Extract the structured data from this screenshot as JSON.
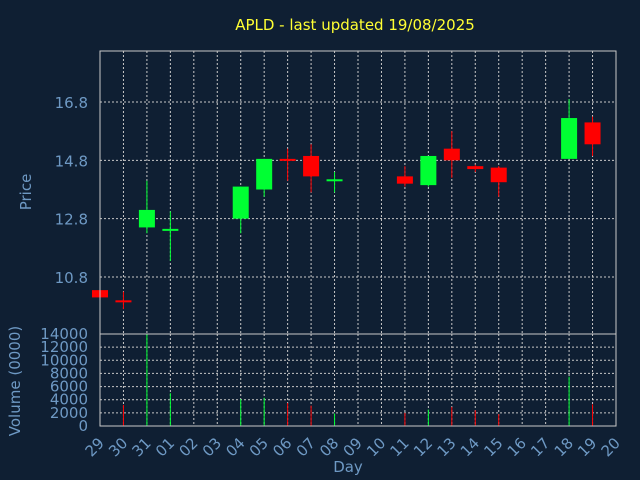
{
  "colors": {
    "background": "#0f1f33",
    "axis_text": "#6e99c4",
    "title": "#ffff33",
    "grid": "#c8c8c8",
    "up": "#00ff33",
    "down": "#ff0000",
    "frame": "#c8c8c8"
  },
  "chart_data": {
    "type": "candlestick",
    "title": "APLD - last updated 19/08/2025",
    "xlabel": "Day",
    "ylabel_price": "Price",
    "ylabel_volume": "Volume (0000)",
    "price_ticks": [
      10.8,
      12.8,
      14.8,
      16.8
    ],
    "price_tick_labels": [
      "10.8",
      "12.8",
      "14.8",
      "16.8"
    ],
    "volume_ticks": [
      0,
      2000,
      4000,
      6000,
      8000,
      10000,
      12000,
      14000
    ],
    "volume_tick_labels": [
      "0",
      "2000",
      "4000",
      "6000",
      "8000",
      "10000",
      "12000",
      "14000"
    ],
    "x_tick_labels": [
      "29",
      "30",
      "31",
      "01",
      "02",
      "03",
      "04",
      "05",
      "06",
      "07",
      "08",
      "09",
      "10",
      "11",
      "12",
      "13",
      "14",
      "15",
      "16",
      "17",
      "18",
      "19",
      "20"
    ],
    "candles": [
      {
        "day": "29",
        "open": 10.35,
        "close": 10.1,
        "high": 10.35,
        "low": 10.1,
        "volume": 300
      },
      {
        "day": "30",
        "open": 10.0,
        "close": 9.95,
        "high": 10.3,
        "low": 9.7,
        "volume": 3200
      },
      {
        "day": "31",
        "open": 12.5,
        "close": 13.1,
        "high": 14.1,
        "low": 12.3,
        "volume": 14000
      },
      {
        "day": "01",
        "open": 12.4,
        "close": 12.45,
        "high": 13.05,
        "low": 11.35,
        "volume": 5000
      },
      {
        "day": "04",
        "open": 12.8,
        "close": 13.9,
        "high": 13.9,
        "low": 12.3,
        "volume": 4100
      },
      {
        "day": "05",
        "open": 13.8,
        "close": 14.85,
        "high": 14.85,
        "low": 13.55,
        "volume": 4300
      },
      {
        "day": "06",
        "open": 14.85,
        "close": 14.8,
        "high": 15.2,
        "low": 14.1,
        "volume": 3500
      },
      {
        "day": "07",
        "open": 14.95,
        "close": 14.25,
        "high": 15.35,
        "low": 13.7,
        "volume": 3100
      },
      {
        "day": "08",
        "open": 14.1,
        "close": 14.15,
        "high": 14.4,
        "low": 13.7,
        "volume": 1900
      },
      {
        "day": "11",
        "open": 14.25,
        "close": 14.0,
        "high": 14.6,
        "low": 13.9,
        "volume": 2000
      },
      {
        "day": "12",
        "open": 13.95,
        "close": 14.95,
        "high": 14.95,
        "low": 13.9,
        "volume": 2500
      },
      {
        "day": "13",
        "open": 15.2,
        "close": 14.8,
        "high": 15.8,
        "low": 14.2,
        "volume": 2900
      },
      {
        "day": "14",
        "open": 14.6,
        "close": 14.5,
        "high": 14.65,
        "low": 14.4,
        "volume": 2400
      },
      {
        "day": "15",
        "open": 14.55,
        "close": 14.05,
        "high": 14.6,
        "low": 13.55,
        "volume": 1800
      },
      {
        "day": "18",
        "open": 14.85,
        "close": 16.25,
        "high": 16.9,
        "low": 14.85,
        "volume": 7500
      },
      {
        "day": "19",
        "open": 16.1,
        "close": 15.35,
        "high": 16.3,
        "low": 14.95,
        "volume": 3300
      }
    ]
  }
}
